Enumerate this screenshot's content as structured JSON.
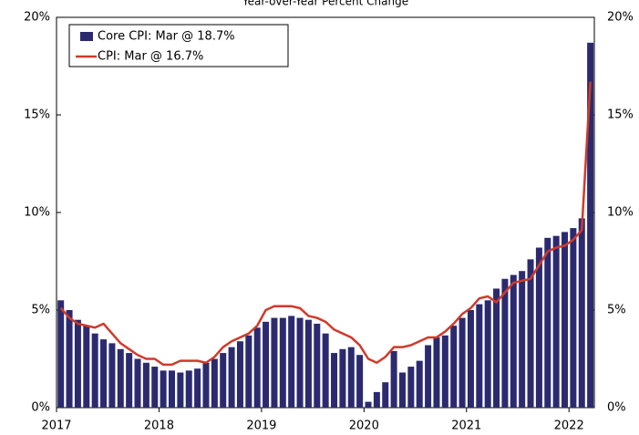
{
  "chart_data": {
    "type": "bar_line",
    "title": "Year-over-Year Percent Change",
    "categories": [
      "2017",
      null,
      null,
      null,
      null,
      null,
      null,
      null,
      null,
      null,
      null,
      null,
      "2018",
      null,
      null,
      null,
      null,
      null,
      null,
      null,
      null,
      null,
      null,
      null,
      "2019",
      null,
      null,
      null,
      null,
      null,
      null,
      null,
      null,
      null,
      null,
      null,
      "2020",
      null,
      null,
      null,
      null,
      null,
      null,
      null,
      null,
      null,
      null,
      null,
      "2021",
      null,
      null,
      null,
      null,
      null,
      null,
      null,
      null,
      null,
      null,
      null,
      "2022",
      null,
      null
    ],
    "series": [
      {
        "name": "Core CPI: Mar @ 18.7%",
        "type": "bar",
        "color": "#2c2a6f",
        "values": [
          5.5,
          5.0,
          4.5,
          4.2,
          3.8,
          3.5,
          3.3,
          3.0,
          2.8,
          2.5,
          2.3,
          2.1,
          1.9,
          1.9,
          1.8,
          1.9,
          2.0,
          2.3,
          2.5,
          2.8,
          3.1,
          3.4,
          3.7,
          4.1,
          4.4,
          4.6,
          4.6,
          4.7,
          4.6,
          4.5,
          4.3,
          3.8,
          2.8,
          3.0,
          3.1,
          2.7,
          0.3,
          0.8,
          1.3,
          2.9,
          1.8,
          2.1,
          2.4,
          3.2,
          3.6,
          3.7,
          4.2,
          4.6,
          5.0,
          5.3,
          5.5,
          6.1,
          6.6,
          6.8,
          7.0,
          7.6,
          8.2,
          8.7,
          8.8,
          9.0,
          9.2,
          9.7,
          18.7
        ]
      },
      {
        "name": "CPI: Mar @ 16.7%",
        "type": "line",
        "color": "#d03a2a",
        "values": [
          5.1,
          4.6,
          4.3,
          4.2,
          4.1,
          4.3,
          3.8,
          3.3,
          3.0,
          2.7,
          2.5,
          2.5,
          2.2,
          2.2,
          2.4,
          2.4,
          2.4,
          2.3,
          2.6,
          3.1,
          3.4,
          3.6,
          3.8,
          4.2,
          5.0,
          5.2,
          5.2,
          5.2,
          5.1,
          4.7,
          4.6,
          4.4,
          4.0,
          3.8,
          3.6,
          3.2,
          2.5,
          2.3,
          2.6,
          3.1,
          3.1,
          3.2,
          3.4,
          3.6,
          3.6,
          3.9,
          4.3,
          4.8,
          5.1,
          5.6,
          5.7,
          5.4,
          5.9,
          6.4,
          6.5,
          6.6,
          7.3,
          8.0,
          8.2,
          8.3,
          8.6,
          9.1,
          16.7
        ]
      }
    ],
    "ylim": [
      0,
      20
    ],
    "yticks": [
      {
        "value": 0,
        "label": "0%"
      },
      {
        "value": 5,
        "label": "5%"
      },
      {
        "value": 10,
        "label": "10%"
      },
      {
        "value": 15,
        "label": "15%"
      },
      {
        "value": 20,
        "label": "20%"
      }
    ],
    "y2lim": [
      0,
      20
    ],
    "y2ticks": [
      {
        "value": 0,
        "label": "0%"
      },
      {
        "value": 5,
        "label": "5%"
      },
      {
        "value": 10,
        "label": "10%"
      },
      {
        "value": 15,
        "label": "15%"
      },
      {
        "value": 20,
        "label": "20%"
      }
    ],
    "legend": "upper left"
  }
}
